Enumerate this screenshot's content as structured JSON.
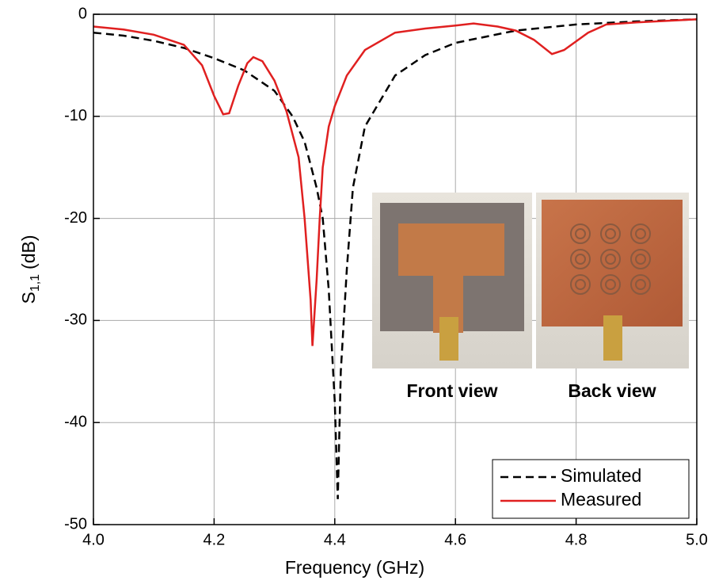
{
  "chart_data": {
    "type": "line",
    "xlabel": "Frequency (GHz)",
    "ylabel": {
      "main": "S",
      "sub": "1,1",
      "unit": "(dB)"
    },
    "xlim": [
      4,
      5
    ],
    "ylim": [
      -50,
      0
    ],
    "xticks": [
      {
        "value": 4,
        "label": "4.0"
      },
      4.2,
      4.4,
      4.6,
      4.8,
      {
        "value": 5,
        "label": "5.0"
      }
    ],
    "yticks": [
      -50,
      -40,
      -30,
      -20,
      -10,
      0
    ],
    "grid": true,
    "legend": "lower right",
    "annotations": [
      "Front view",
      "Back view"
    ],
    "series": [
      {
        "name": "Simulated",
        "color": "#000000",
        "dash": true,
        "x": [
          4.0,
          4.05,
          4.1,
          4.15,
          4.2,
          4.25,
          4.3,
          4.33,
          4.35,
          4.37,
          4.38,
          4.39,
          4.4,
          4.405,
          4.41,
          4.42,
          4.43,
          4.45,
          4.5,
          4.55,
          4.6,
          4.7,
          4.8,
          4.9,
          5.0
        ],
        "values": [
          -1.8,
          -2.1,
          -2.6,
          -3.3,
          -4.3,
          -5.5,
          -7.5,
          -10,
          -12.5,
          -17,
          -20,
          -27,
          -38,
          -47.5,
          -35,
          -25,
          -17,
          -11,
          -6,
          -4,
          -2.8,
          -1.6,
          -1.0,
          -0.7,
          -0.5
        ]
      },
      {
        "name": "Measured",
        "color": "#e02020",
        "dash": false,
        "x": [
          4.0,
          4.05,
          4.1,
          4.15,
          4.18,
          4.2,
          4.215,
          4.225,
          4.24,
          4.255,
          4.265,
          4.28,
          4.3,
          4.32,
          4.34,
          4.35,
          4.36,
          4.363,
          4.37,
          4.375,
          4.38,
          4.39,
          4.4,
          4.42,
          4.45,
          4.5,
          4.55,
          4.6,
          4.63,
          4.67,
          4.7,
          4.73,
          4.76,
          4.78,
          4.82,
          4.85,
          4.9,
          5.0
        ],
        "values": [
          -1.2,
          -1.5,
          -2.0,
          -3.0,
          -5.0,
          -8,
          -9.8,
          -9.7,
          -7,
          -4.8,
          -4.2,
          -4.6,
          -6.5,
          -9.5,
          -14,
          -20,
          -28,
          -32.5,
          -26,
          -20,
          -15,
          -11,
          -9,
          -6,
          -3.5,
          -1.8,
          -1.4,
          -1.1,
          -0.9,
          -1.2,
          -1.6,
          -2.5,
          -3.9,
          -3.5,
          -1.8,
          -1.0,
          -0.8,
          -0.5
        ]
      }
    ]
  }
}
